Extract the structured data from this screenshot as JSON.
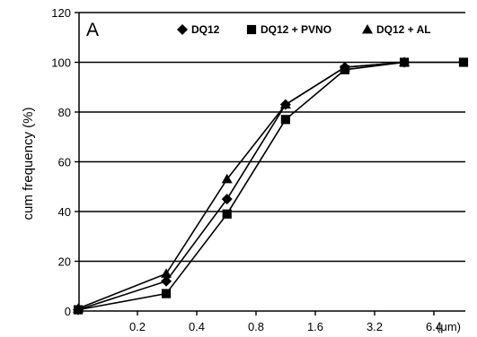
{
  "chart_data": {
    "type": "line",
    "panel_label": "A",
    "ylabel": "cum frequency (%)",
    "xlabel": "",
    "ylim": [
      0,
      120
    ],
    "y_ticks": [
      "0",
      "20",
      "40",
      "60",
      "80",
      "100",
      "120"
    ],
    "x_scale": "log",
    "x_tick_values": [
      0.2,
      0.4,
      0.8,
      1.6,
      3.2,
      6.4
    ],
    "x_tick_labels": [
      "0.2",
      "0.4",
      "0.8",
      "1.6",
      "3.2",
      "6.4"
    ],
    "x_unit": "(μm)",
    "grid": "horizontal",
    "legend_position": "top",
    "series": [
      {
        "name": "DQ12",
        "marker": "diamond",
        "x": [
          0.1,
          0.28,
          0.57,
          1.13,
          2.26,
          4.53
        ],
        "y": [
          0.5,
          12,
          45,
          83,
          98,
          100
        ]
      },
      {
        "name": "DQ12 + PVNO",
        "marker": "square",
        "x": [
          0.1,
          0.28,
          0.57,
          1.13,
          2.26,
          4.53,
          9.05
        ],
        "y": [
          0.5,
          7,
          39,
          77,
          97,
          100,
          100
        ]
      },
      {
        "name": "DQ12 + AL",
        "marker": "triangle",
        "x": [
          0.1,
          0.28,
          0.57,
          1.13,
          2.26,
          4.53
        ],
        "y": [
          1,
          15,
          53,
          83,
          98,
          100
        ]
      }
    ]
  }
}
